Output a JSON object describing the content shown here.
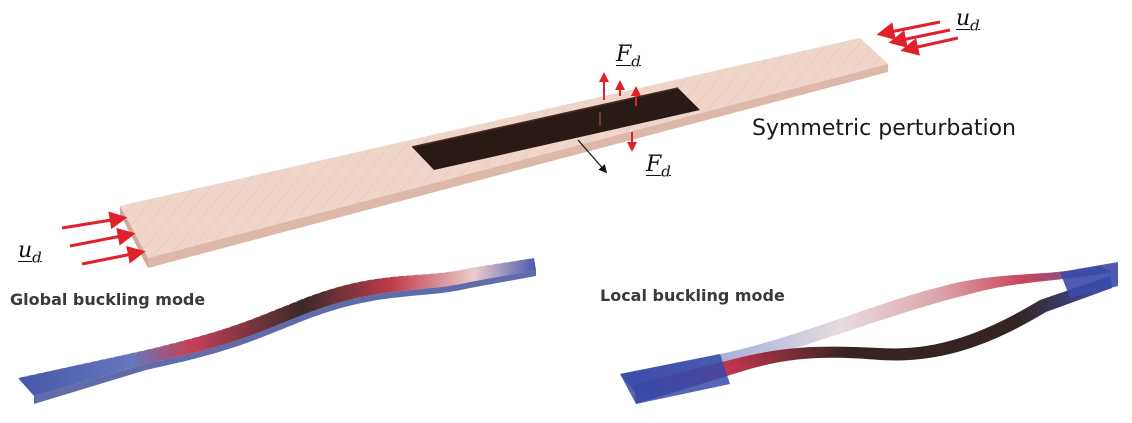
{
  "labels": {
    "u_top": {
      "sym": "u",
      "sub": "d"
    },
    "u_left": {
      "sym": "u",
      "sub": "d"
    },
    "f_top": {
      "sym": "F",
      "sub": "d"
    },
    "f_bottom": {
      "sym": "F",
      "sub": "d"
    },
    "symmetric": "Symmetric perturbation",
    "global_mode": "Global buckling mode",
    "local_mode": "Local buckling mode"
  },
  "colors": {
    "beam_fill": "#e6c5b6",
    "beam_edge": "#c89a88",
    "delamination": "#2a1a16",
    "arrow_red": "#e0202a",
    "mode_blue": "#3a4aa8",
    "mode_red": "#c8283c",
    "mode_dark": "#2a1816"
  }
}
